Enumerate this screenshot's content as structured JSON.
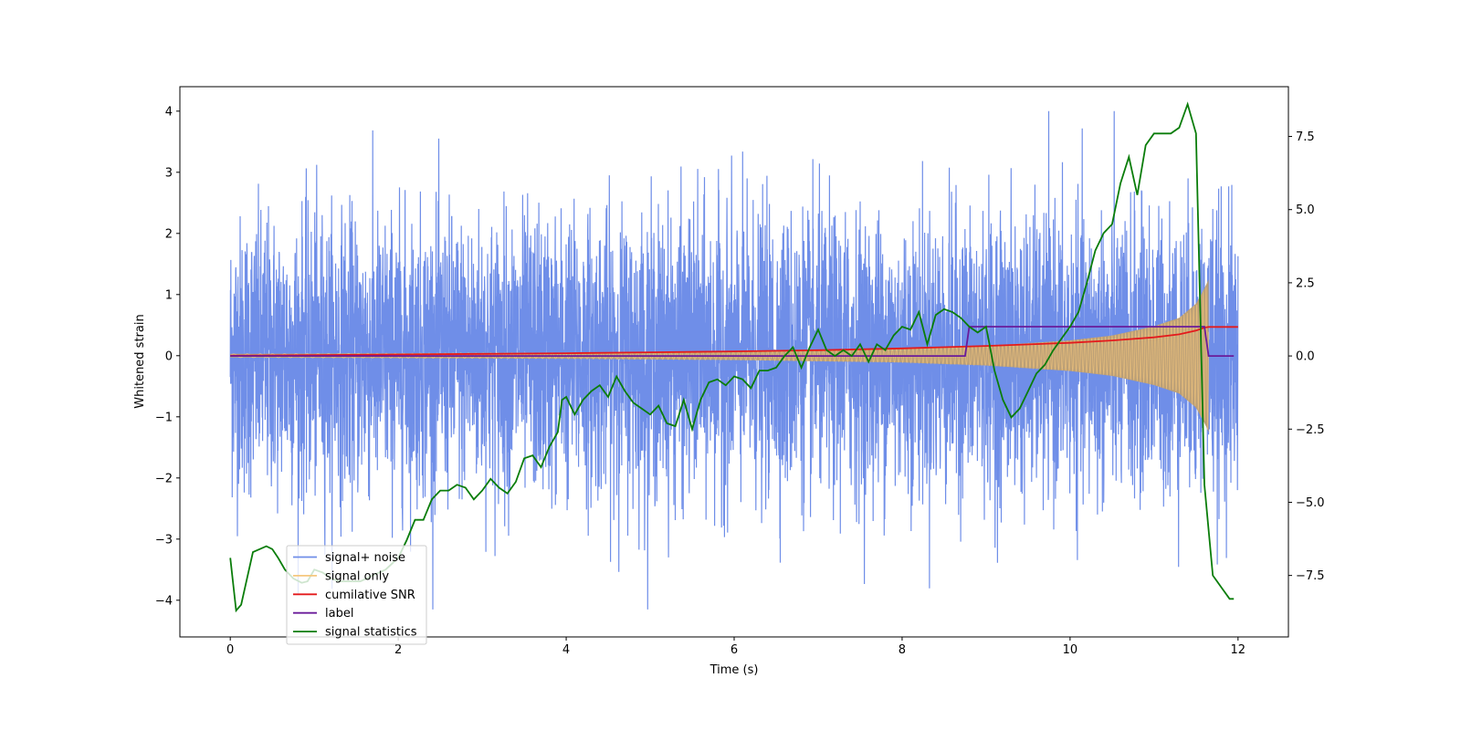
{
  "chart_data": {
    "type": "line",
    "title": "",
    "xlabel": "Time (s)",
    "ylabel": "Whitened strain",
    "y2label": "",
    "xlim": [
      -0.6,
      12.6
    ],
    "ylim": [
      -4.6,
      4.4
    ],
    "y2lim": [
      -9.6,
      9.2
    ],
    "x_ticks": [
      0,
      2,
      4,
      6,
      8,
      10,
      12
    ],
    "x_tick_labels": [
      "0",
      "2",
      "4",
      "6",
      "8",
      "10",
      "12"
    ],
    "y_ticks": [
      -4,
      -3,
      -2,
      -1,
      0,
      1,
      2,
      3,
      4
    ],
    "y_tick_labels": [
      "−4",
      "−3",
      "−2",
      "−1",
      "0",
      "1",
      "2",
      "3",
      "4"
    ],
    "y2_ticks": [
      -7.5,
      -5.0,
      -2.5,
      0.0,
      2.5,
      5.0,
      7.5
    ],
    "y2_tick_labels": [
      "−7.5",
      "−5.0",
      "−2.5",
      "0.0",
      "2.5",
      "5.0",
      "7.5"
    ],
    "grid": false,
    "legend_position": "lower-left",
    "series": [
      {
        "name": "signal+ noise",
        "color": "#6f8ee8",
        "axis": "left",
        "kind": "noise",
        "x_range": [
          0,
          12
        ],
        "approx_amplitude": 2.0,
        "approx_extremes": [
          -4.15,
          4.0
        ]
      },
      {
        "name": "signal only",
        "color": "#f5c77e",
        "axis": "left",
        "kind": "chirp",
        "x_range": [
          0,
          11.65
        ],
        "envelope": [
          [
            0,
            0.03
          ],
          [
            2,
            0.04
          ],
          [
            4,
            0.05
          ],
          [
            6,
            0.07
          ],
          [
            8,
            0.11
          ],
          [
            9,
            0.16
          ],
          [
            10,
            0.25
          ],
          [
            10.5,
            0.33
          ],
          [
            11,
            0.48
          ],
          [
            11.3,
            0.62
          ],
          [
            11.5,
            0.85
          ],
          [
            11.6,
            1.1
          ],
          [
            11.65,
            1.25
          ]
        ]
      },
      {
        "name": "cumilative SNR",
        "color": "#e41a1c",
        "axis": "left",
        "x": [
          0,
          1,
          2,
          3,
          4,
          5,
          6,
          7,
          8,
          9,
          10,
          10.5,
          11,
          11.3,
          11.5,
          11.6,
          11.65,
          12
        ],
        "y": [
          0.0,
          0.01,
          0.02,
          0.03,
          0.04,
          0.055,
          0.07,
          0.09,
          0.12,
          0.16,
          0.21,
          0.25,
          0.3,
          0.35,
          0.41,
          0.46,
          0.47,
          0.47
        ]
      },
      {
        "name": "label",
        "color": "#6a1b9a",
        "axis": "right",
        "x": [
          0,
          8.75,
          8.8,
          11.6,
          11.65,
          11.95
        ],
        "y": [
          0,
          0,
          1,
          1,
          0,
          0
        ]
      },
      {
        "name": "signal statistics",
        "color": "#0a7d0a",
        "axis": "right",
        "x": [
          0,
          0.07,
          0.13,
          0.27,
          0.35,
          0.43,
          0.5,
          0.57,
          0.65,
          0.75,
          0.85,
          0.92,
          1.0,
          1.1,
          1.2,
          1.3,
          1.4,
          1.55,
          1.7,
          1.85,
          2.0,
          2.1,
          2.2,
          2.3,
          2.4,
          2.5,
          2.6,
          2.7,
          2.8,
          2.9,
          3.0,
          3.1,
          3.2,
          3.3,
          3.4,
          3.5,
          3.6,
          3.7,
          3.8,
          3.9,
          3.95,
          4.0,
          4.1,
          4.2,
          4.3,
          4.4,
          4.5,
          4.6,
          4.7,
          4.8,
          4.9,
          5.0,
          5.1,
          5.2,
          5.3,
          5.4,
          5.5,
          5.6,
          5.7,
          5.8,
          5.9,
          6.0,
          6.1,
          6.2,
          6.3,
          6.4,
          6.5,
          6.6,
          6.7,
          6.8,
          6.9,
          7.0,
          7.1,
          7.2,
          7.3,
          7.4,
          7.5,
          7.6,
          7.7,
          7.8,
          7.9,
          8.0,
          8.1,
          8.2,
          8.3,
          8.4,
          8.5,
          8.6,
          8.7,
          8.8,
          8.9,
          9.0,
          9.1,
          9.2,
          9.3,
          9.4,
          9.5,
          9.6,
          9.7,
          9.8,
          9.9,
          10.0,
          10.1,
          10.2,
          10.3,
          10.4,
          10.5,
          10.6,
          10.7,
          10.8,
          10.9,
          11.0,
          11.1,
          11.2,
          11.3,
          11.4,
          11.5,
          11.6,
          11.7,
          11.8,
          11.9,
          11.95
        ],
        "y": [
          -6.9,
          -8.7,
          -8.5,
          -6.7,
          -6.6,
          -6.5,
          -6.6,
          -6.9,
          -7.3,
          -7.6,
          -7.75,
          -7.7,
          -7.3,
          -7.4,
          -7.6,
          -7.7,
          -7.7,
          -7.7,
          -7.5,
          -7.3,
          -6.9,
          -6.3,
          -5.6,
          -5.6,
          -4.9,
          -4.6,
          -4.6,
          -4.4,
          -4.5,
          -4.9,
          -4.6,
          -4.2,
          -4.5,
          -4.7,
          -4.3,
          -3.5,
          -3.4,
          -3.8,
          -3.1,
          -2.6,
          -1.5,
          -1.4,
          -2.0,
          -1.5,
          -1.2,
          -1.0,
          -1.4,
          -0.7,
          -1.2,
          -1.6,
          -1.8,
          -2.0,
          -1.7,
          -2.3,
          -2.4,
          -1.5,
          -2.5,
          -1.5,
          -0.9,
          -0.8,
          -1.0,
          -0.7,
          -0.8,
          -1.1,
          -0.5,
          -0.5,
          -0.4,
          0.0,
          0.3,
          -0.4,
          0.3,
          0.9,
          0.2,
          0.0,
          0.2,
          0.0,
          0.4,
          -0.2,
          0.4,
          0.2,
          0.7,
          1.0,
          0.9,
          1.5,
          0.4,
          1.4,
          1.6,
          1.5,
          1.3,
          1.0,
          0.8,
          1.0,
          -0.5,
          -1.5,
          -2.1,
          -1.8,
          -1.2,
          -0.6,
          -0.3,
          0.2,
          0.6,
          1.0,
          1.5,
          2.5,
          3.6,
          4.2,
          4.5,
          5.9,
          6.8,
          5.5,
          7.2,
          7.6,
          7.6,
          7.6,
          7.8,
          8.6,
          7.6,
          -4.4,
          -7.5,
          -7.9,
          -8.3,
          -8.3
        ]
      }
    ]
  },
  "legend": {
    "items": [
      {
        "label": "signal+ noise",
        "color": "#6f8ee8"
      },
      {
        "label": "signal only",
        "color": "#f5c77e"
      },
      {
        "label": "cumilative SNR",
        "color": "#e41a1c"
      },
      {
        "label": "label",
        "color": "#6a1b9a"
      },
      {
        "label": "signal statistics",
        "color": "#0a7d0a"
      }
    ]
  }
}
